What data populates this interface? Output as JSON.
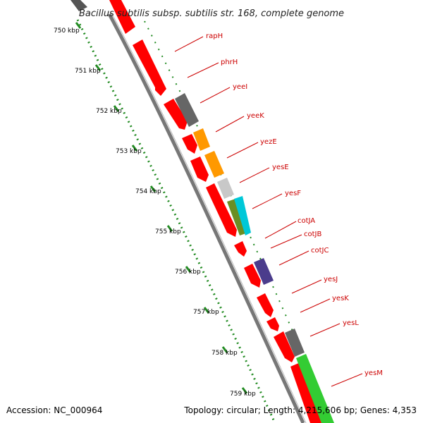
{
  "title": "Bacillus subtilis subsp. subtilis str. 168, complete genome",
  "footer": {
    "accession": "Accession: NC_000964",
    "topology": "Topology: circular; Length: 4,215,606 bp; Genes: 4,353"
  },
  "kbp_labels": [
    "750 kbp",
    "751 kbp",
    "752 kbp",
    "753 kbp",
    "754 kbp",
    "755 kbp",
    "756 kbp",
    "757 kbp",
    "758 kbp",
    "759 kbp"
  ],
  "genes": [
    {
      "name": "rapH"
    },
    {
      "name": "phrH"
    },
    {
      "name": "yeeI"
    },
    {
      "name": "yeeK"
    },
    {
      "name": "yezE"
    },
    {
      "name": "yesE"
    },
    {
      "name": "yesF"
    },
    {
      "name": "cotJA"
    },
    {
      "name": "cotJB"
    },
    {
      "name": "cotJC"
    },
    {
      "name": "yesJ"
    },
    {
      "name": "yesK"
    },
    {
      "name": "yesL"
    },
    {
      "name": "yesM"
    }
  ],
  "colors": {
    "cds": "#ff0000",
    "backbone": "#777777",
    "tick": "#228b22",
    "label": "#cc0000",
    "gray_feature": "#666666",
    "orange_feature": "#ff9900",
    "lightgray_feature": "#c8c8c8",
    "olive_feature": "#6b8e23",
    "cyan_feature": "#00c8d8",
    "purple_feature": "#4b3c8c",
    "green_feature": "#33cc33"
  }
}
